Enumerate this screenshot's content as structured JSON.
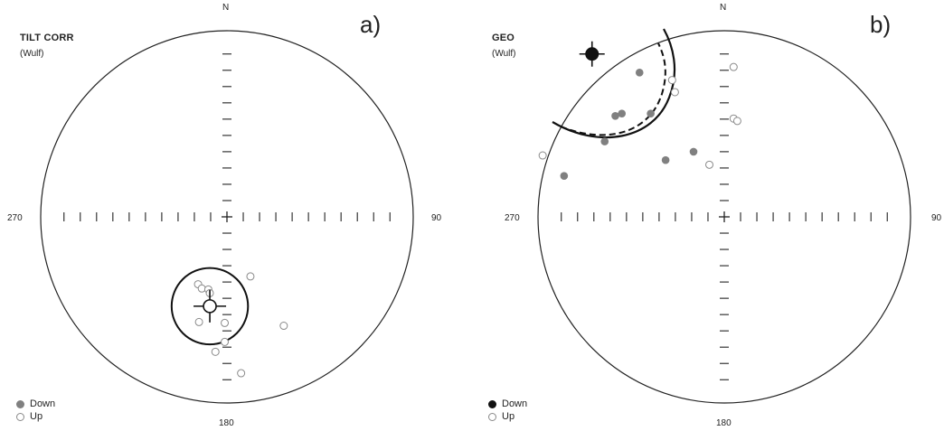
{
  "panels": [
    {
      "id": "a",
      "tag": "a)",
      "title": "TILT CORR",
      "subtitle": "(Wulf)",
      "labels": {
        "north": "N",
        "east": "90",
        "south": "180",
        "west": "270"
      },
      "legend": {
        "down": "Down",
        "up": "Up"
      },
      "colors": {
        "down": "#808080",
        "up_stroke": "#8a8a8a",
        "mean": "#111111"
      },
      "points_down": [],
      "points_up": [
        [
          -0.155,
          -0.362
        ],
        [
          -0.135,
          -0.385
        ],
        [
          -0.1,
          -0.39
        ],
        [
          -0.092,
          -0.41
        ],
        [
          0.126,
          -0.32
        ],
        [
          0.305,
          -0.585
        ],
        [
          -0.15,
          -0.565
        ],
        [
          -0.062,
          -0.725
        ],
        [
          -0.012,
          -0.672
        ],
        [
          0.076,
          -0.84
        ],
        [
          -0.012,
          -0.57
        ]
      ],
      "mean": {
        "x": -0.092,
        "y": -0.48,
        "style": "open-cross"
      },
      "confidence_circles": [
        {
          "cx": -0.092,
          "cy": -0.48,
          "r": 0.205,
          "dashed": false
        }
      ]
    },
    {
      "id": "b",
      "tag": "b)",
      "title": "GEO",
      "subtitle": "(Wulf)",
      "labels": {
        "north": "N",
        "east": "90",
        "south": "180",
        "west": "270"
      },
      "legend": {
        "down": "Down",
        "up": "Up"
      },
      "colors": {
        "down": "#808080",
        "up_stroke": "#8a8a8a",
        "mean": "#111111"
      },
      "points_down": [
        [
          -0.585,
          0.542
        ],
        [
          -0.455,
          0.775
        ],
        [
          -0.315,
          0.305
        ],
        [
          -0.55,
          0.555
        ],
        [
          -0.165,
          0.35
        ],
        [
          -0.642,
          0.405
        ],
        [
          -0.395,
          0.555
        ],
        [
          -0.86,
          0.22
        ]
      ],
      "points_up": [
        [
          0.05,
          0.528
        ],
        [
          0.07,
          0.515
        ],
        [
          -0.265,
          0.67
        ],
        [
          -0.28,
          0.735
        ],
        [
          0.05,
          0.805
        ],
        [
          -0.975,
          0.33
        ],
        [
          -0.08,
          0.28
        ]
      ],
      "mean": {
        "x": -0.71,
        "y": 0.875,
        "style": "filled-cross"
      },
      "confidence_circles": [
        {
          "arc": "solid"
        },
        {
          "arc": "dashed"
        }
      ]
    }
  ]
}
